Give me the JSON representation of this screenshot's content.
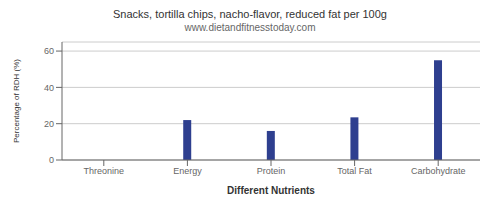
{
  "chart_data": {
    "type": "bar",
    "title": "Snacks, tortilla chips, nacho-flavor, reduced fat per 100g",
    "subtitle": "www.dietandfitnesstoday.com",
    "categories": [
      "Threonine",
      "Energy",
      "Protein",
      "Total Fat",
      "Carbohydrate"
    ],
    "values": [
      0,
      22,
      16,
      23.5,
      55
    ],
    "color": "#2e3f8f",
    "xlabel": "Different Nutrients",
    "ylabel": "Percentage of RDH (%)",
    "ylim": [
      0,
      65
    ],
    "yticks": [
      0,
      20,
      40,
      60
    ],
    "grid": true
  }
}
